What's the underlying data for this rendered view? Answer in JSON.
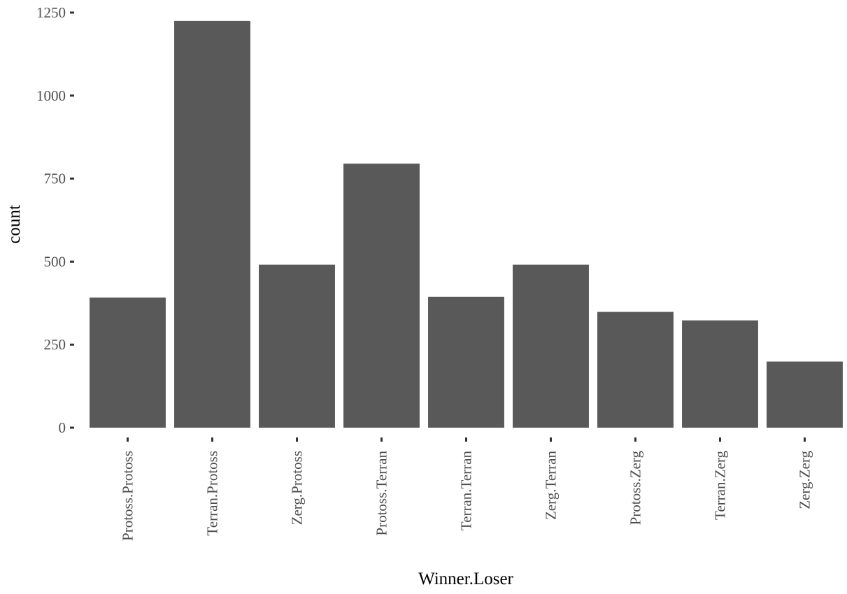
{
  "chart_data": {
    "type": "bar",
    "categories": [
      "Protoss.Protoss",
      "Terran.Protoss",
      "Zerg.Protoss",
      "Protoss.Terran",
      "Terran.Terran",
      "Zerg.Terran",
      "Protoss.Zerg",
      "Terran.Zerg",
      "Zerg.Zerg"
    ],
    "values": [
      392,
      1225,
      491,
      795,
      394,
      491,
      349,
      323,
      199
    ],
    "xlabel": "Winner.Loser",
    "ylabel": "count",
    "ylim": [
      0,
      1250
    ],
    "yticks": [
      0,
      250,
      500,
      750,
      1000,
      1250
    ],
    "ytick_labels": [
      "0",
      "250",
      "500",
      "750",
      "1000",
      "1250"
    ],
    "grid": false,
    "legend": "none",
    "bar_color": "#595959"
  }
}
